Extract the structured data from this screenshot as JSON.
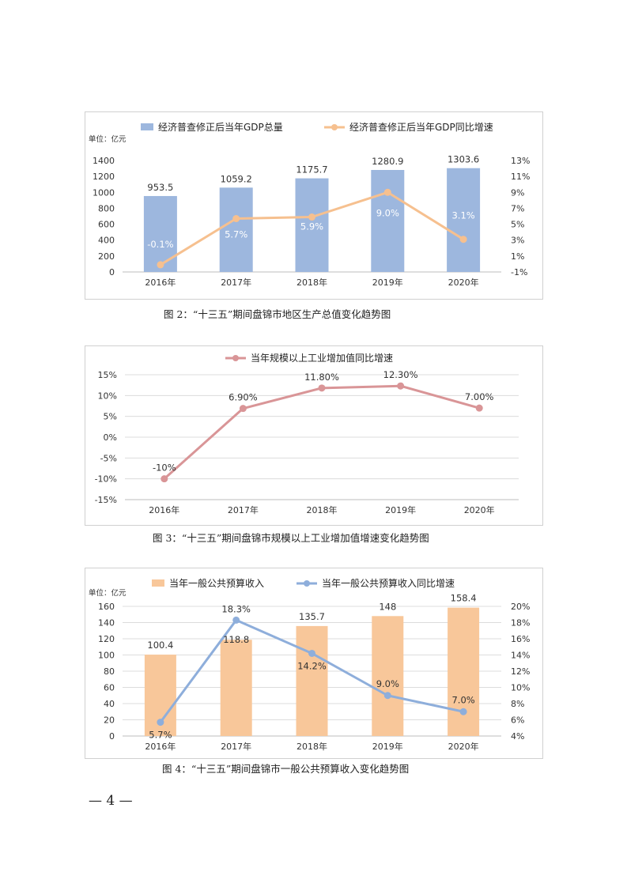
{
  "chart_data": [
    {
      "type": "bar+line",
      "unit_label": "单位：亿元",
      "categories": [
        "2016年",
        "2017年",
        "2018年",
        "2019年",
        "2020年"
      ],
      "series": [
        {
          "name": "经济普查修正后当年GDP总量",
          "kind": "bar",
          "axis": "left",
          "color": "#9db7de",
          "values": [
            953.5,
            1059.2,
            1175.7,
            1280.9,
            1303.6
          ],
          "labels": [
            "953.5",
            "1059.2",
            "1175.7",
            "1280.9",
            "1303.6"
          ]
        },
        {
          "name": "经济普查修正后当年GDP同比增速",
          "kind": "line",
          "axis": "right",
          "color": "#f6c08f",
          "values": [
            -0.1,
            5.7,
            5.9,
            9.0,
            3.1
          ],
          "labels": [
            "-0.1%",
            "5.7%",
            "5.9%",
            "9.0%",
            "3.1%"
          ]
        }
      ],
      "y_left": {
        "range": [
          0,
          1400
        ],
        "ticks": [
          "0",
          "200",
          "400",
          "600",
          "800",
          "1000",
          "1200",
          "1400"
        ]
      },
      "y_right": {
        "range": [
          -1,
          13
        ],
        "ticks": [
          "-1%",
          "1%",
          "3%",
          "5%",
          "7%",
          "9%",
          "11%",
          "13%"
        ]
      },
      "grid": false,
      "legend": "top"
    },
    {
      "type": "line",
      "categories": [
        "2016年",
        "2017年",
        "2018年",
        "2019年",
        "2020年"
      ],
      "series": [
        {
          "name": "当年规模以上工业增加值同比增速",
          "kind": "line",
          "axis": "left",
          "color": "#d99597",
          "values": [
            -10,
            6.9,
            11.8,
            12.3,
            7.0
          ],
          "labels": [
            "-10%",
            "6.90%",
            "11.80%",
            "12.30%",
            "7.00%"
          ]
        }
      ],
      "y_left": {
        "range": [
          -15,
          15
        ],
        "ticks": [
          "-15%",
          "-10%",
          "-5%",
          "0%",
          "5%",
          "10%",
          "15%"
        ]
      },
      "grid": true,
      "legend": "top"
    },
    {
      "type": "bar+line",
      "unit_label": "单位：亿元",
      "categories": [
        "2016年",
        "2017年",
        "2018年",
        "2019年",
        "2020年"
      ],
      "series": [
        {
          "name": "当年一般公共预算收入",
          "kind": "bar",
          "axis": "left",
          "color": "#f8c79a",
          "values": [
            100.4,
            118.8,
            135.7,
            148,
            158.4
          ],
          "labels": [
            "100.4",
            "118.8",
            "135.7",
            "148",
            "158.4"
          ]
        },
        {
          "name": "当年一般公共预算收入同比增速",
          "kind": "line",
          "axis": "right",
          "color": "#8eaedb",
          "values": [
            5.7,
            18.3,
            14.2,
            9.0,
            7.0
          ],
          "labels": [
            "5.7%",
            "18.3%",
            "14.2%",
            "9.0%",
            "7.0%"
          ]
        }
      ],
      "y_left": {
        "range": [
          0,
          160
        ],
        "ticks": [
          "0",
          "20",
          "40",
          "60",
          "80",
          "100",
          "120",
          "140",
          "160"
        ]
      },
      "y_right": {
        "range": [
          4,
          20
        ],
        "ticks": [
          "4%",
          "6%",
          "8%",
          "10%",
          "12%",
          "14%",
          "16%",
          "18%",
          "20%"
        ]
      },
      "grid": true,
      "legend": "top"
    }
  ],
  "captions": [
    "图 2：“十三五”期间盘锦市地区生产总值变化趋势图",
    "图 3：“十三五”期间盘锦市规模以上工业增加值增速变化趋势图",
    "图 4：“十三五”期间盘锦市一般公共预算收入变化趋势图"
  ],
  "page_number": "— 4 —"
}
